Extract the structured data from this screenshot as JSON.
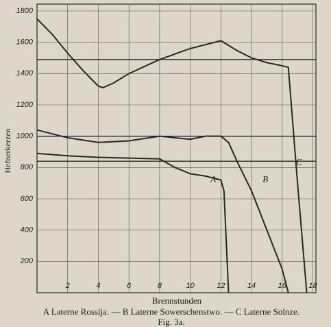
{
  "chart_data": {
    "type": "line",
    "y_label": "Hefnerkerzen",
    "x_label": "Brennstunden",
    "caption": "A Laterne Rossija. — B Laterne Sowerschenstwo. — C Laterne Solnze.",
    "figure": "Fig. 3a.",
    "xlim": [
      0,
      18.2
    ],
    "ylim": [
      0,
      1800
    ],
    "xticks": [
      2,
      4,
      6,
      8,
      10,
      12,
      14,
      16,
      18
    ],
    "yticks": [
      200,
      400,
      600,
      800,
      1000,
      1200,
      1400,
      1600,
      1800
    ],
    "grid": true,
    "hlines": [
      1490,
      1000,
      840
    ],
    "color": "#2a2622",
    "series": [
      {
        "name": "A",
        "label_at": [
          11.5,
          720
        ],
        "x": [
          0,
          2,
          4,
          6,
          8,
          9,
          10,
          11,
          12,
          12.2,
          12.5
        ],
        "values": [
          890,
          875,
          865,
          860,
          855,
          800,
          760,
          745,
          720,
          650,
          0
        ]
      },
      {
        "name": "B",
        "label_at": [
          14.9,
          720
        ],
        "x": [
          0,
          2,
          4,
          6,
          8,
          10,
          11,
          12,
          12.5,
          13,
          14,
          15,
          16,
          16.4
        ],
        "values": [
          1040,
          990,
          960,
          970,
          1000,
          980,
          1000,
          1000,
          960,
          850,
          650,
          400,
          150,
          0
        ]
      },
      {
        "name": "C",
        "label_at": [
          17.1,
          830
        ],
        "x": [
          0,
          1,
          2,
          3,
          4,
          4.3,
          5,
          6,
          8,
          10,
          12,
          13,
          14,
          15,
          16,
          16.4,
          17,
          17.6
        ],
        "values": [
          1750,
          1650,
          1530,
          1420,
          1320,
          1310,
          1340,
          1400,
          1490,
          1560,
          1610,
          1550,
          1500,
          1470,
          1450,
          1440,
          700,
          0
        ]
      }
    ]
  }
}
